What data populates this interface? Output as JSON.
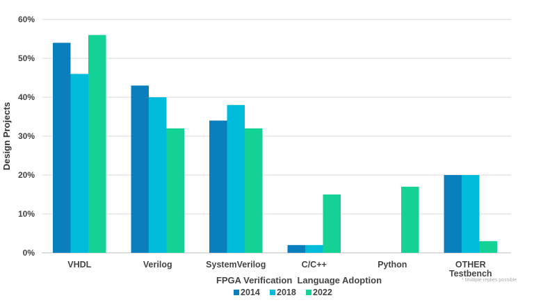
{
  "chart_data": {
    "type": "bar",
    "title": "",
    "xlabel": "FPGA Verification  Language Adoption",
    "ylabel": "Design Projects",
    "ylim": [
      0,
      60
    ],
    "yticks": [
      "0%",
      "10%",
      "20%",
      "30%",
      "40%",
      "50%",
      "60%"
    ],
    "grid": true,
    "legend_placement": "bottom",
    "categories": [
      "VHDL",
      "Verilog",
      "SystemVerilog",
      "C/C++",
      "Python",
      "OTHER\nTestbench"
    ],
    "series": [
      {
        "name": "2014",
        "color": "#0a7fbe",
        "values": [
          54,
          43,
          34,
          2,
          0,
          20
        ]
      },
      {
        "name": "2018",
        "color": "#00bcdb",
        "values": [
          46,
          40,
          38,
          2,
          0,
          20
        ]
      },
      {
        "name": "2022",
        "color": "#14d296",
        "values": [
          56,
          32,
          32,
          15,
          17,
          3
        ]
      }
    ],
    "footnote": "* Multiple replies possible"
  }
}
